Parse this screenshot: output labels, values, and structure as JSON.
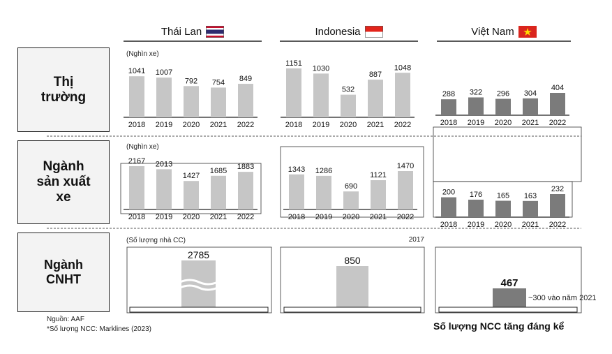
{
  "colors": {
    "light_bar": "#c6c6c6",
    "dark_bar": "#7b7b7b",
    "row_label_bg": "#f3f3f3",
    "thai_red": "#c8102e",
    "thai_blue": "#2d2a6e",
    "indo_red": "#e3241b",
    "vn_red": "#da251d",
    "vn_star": "#ffdd00"
  },
  "headers": {
    "thailand": "Thái Lan",
    "indonesia": "Indonesia",
    "vietnam": "Việt Nam"
  },
  "rows": {
    "market": "Thị\ntrường",
    "manufacturing": "Ngành\nsản xuất\nxe",
    "supporting": "Ngành\nCNHT"
  },
  "units": {
    "vehicles_market": "(Nghìn xe)",
    "vehicles_manufacturing": "(Nghìn xe)",
    "suppliers": "(Số lượng nhà CC)"
  },
  "footer": {
    "source": "Nguồn: AAF",
    "note": "*Số lượng NCC: Marklines (2023)",
    "highlight": "Số lượng NCC tăng đáng kể"
  },
  "chart_data": [
    {
      "type": "bar",
      "title": "Thị trường - Thái Lan",
      "ylabel": "Nghìn xe",
      "categories": [
        "2018",
        "2019",
        "2020",
        "2021",
        "2022"
      ],
      "values": [
        1041,
        1007,
        792,
        754,
        849
      ]
    },
    {
      "type": "bar",
      "title": "Thị trường - Indonesia",
      "ylabel": "Nghìn xe",
      "categories": [
        "2018",
        "2019",
        "2020",
        "2021",
        "2022"
      ],
      "values": [
        1151,
        1030,
        532,
        887,
        1048
      ]
    },
    {
      "type": "bar",
      "title": "Thị trường - Việt Nam",
      "ylabel": "Nghìn xe",
      "categories": [
        "2018",
        "2019",
        "2020",
        "2021",
        "2022"
      ],
      "values": [
        288,
        322,
        296,
        304,
        404
      ]
    },
    {
      "type": "bar",
      "title": "Ngành sản xuất xe - Thái Lan",
      "ylabel": "Nghìn xe",
      "categories": [
        "2018",
        "2019",
        "2020",
        "2021",
        "2022"
      ],
      "values": [
        2167,
        2013,
        1427,
        1685,
        1883
      ]
    },
    {
      "type": "bar",
      "title": "Ngành sản xuất xe - Indonesia",
      "ylabel": "Nghìn xe",
      "categories": [
        "2018",
        "2019",
        "2020",
        "2021",
        "2022"
      ],
      "values": [
        1343,
        1286,
        690,
        1121,
        1470
      ]
    },
    {
      "type": "bar",
      "title": "Ngành sản xuất xe - Việt Nam",
      "ylabel": "Nghìn xe",
      "categories": [
        "2018",
        "2019",
        "2020",
        "2021",
        "2022"
      ],
      "values": [
        200,
        176,
        165,
        163,
        232
      ]
    },
    {
      "type": "bar",
      "title": "Ngành CNHT - Thái Lan",
      "ylabel": "Số lượng nhà CC",
      "categories": [
        "Thái Lan"
      ],
      "values": [
        2785
      ]
    },
    {
      "type": "bar",
      "title": "Ngành CNHT - Indonesia",
      "ylabel": "Số lượng nhà CC",
      "categories": [
        "Indonesia"
      ],
      "values": [
        850
      ],
      "annotation": "2017"
    },
    {
      "type": "bar",
      "title": "Ngành CNHT - Việt Nam",
      "ylabel": "Số lượng nhà CC",
      "categories": [
        "Việt Nam"
      ],
      "values": [
        467
      ],
      "annotation": "~300 vào năm 2021"
    }
  ]
}
